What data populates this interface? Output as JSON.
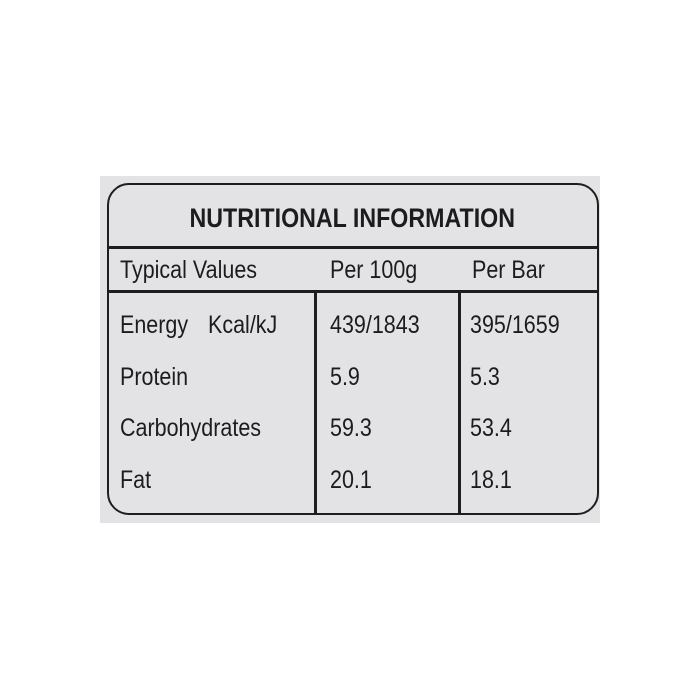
{
  "label": {
    "title": "NUTRITIONAL INFORMATION",
    "columns": [
      "Typical Values",
      "Per 100g",
      "Per Bar"
    ],
    "rows": [
      {
        "name": "Energy",
        "unit": "Kcal/kJ",
        "per_100g": "439/1843",
        "per_bar": "395/1659"
      },
      {
        "name": "Protein",
        "unit": "",
        "per_100g": "5.9",
        "per_bar": "5.3"
      },
      {
        "name": "Carbohydrates",
        "unit": "",
        "per_100g": "59.3",
        "per_bar": "53.4"
      },
      {
        "name": "Fat",
        "unit": "",
        "per_100g": "20.1",
        "per_bar": "18.1"
      }
    ]
  }
}
